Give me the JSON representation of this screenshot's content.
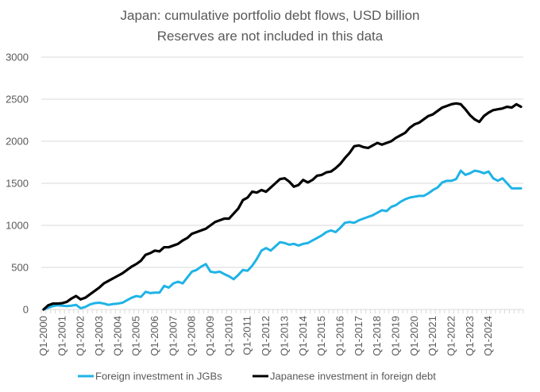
{
  "chart_data": {
    "type": "line",
    "title": "Japan: cumulative portfolio debt flows, USD billion",
    "subtitle": "Reserves are not included in this data",
    "xlabel": "",
    "ylabel": "",
    "ylim": [
      0,
      3000
    ],
    "yticks": [
      0,
      500,
      1000,
      1500,
      2000,
      2500,
      3000
    ],
    "grid": true,
    "legend_position": "bottom",
    "x_tick_labels": [
      "Q1-2000",
      "Q1-2001",
      "Q1-2002",
      "Q1-2003",
      "Q1-2004",
      "Q1-2005",
      "Q1-2006",
      "Q1-2007",
      "Q1-2008",
      "Q1-2009",
      "Q1-2010",
      "Q1-2011",
      "Q1-2012",
      "Q1-2013",
      "Q1-2014",
      "Q1-2015",
      "Q1-2016",
      "Q1-2017",
      "Q1-2018",
      "Q1-2019",
      "Q1-2020",
      "Q1-2021",
      "Q1-2022",
      "Q1-2023",
      "Q1-2024"
    ],
    "series": [
      {
        "name": "Foreign investment in JGBs",
        "color": "#1fb3e6",
        "values": [
          0,
          20,
          40,
          50,
          45,
          40,
          45,
          55,
          15,
          30,
          60,
          75,
          80,
          70,
          55,
          65,
          70,
          80,
          110,
          140,
          160,
          150,
          210,
          195,
          200,
          200,
          280,
          260,
          310,
          330,
          310,
          380,
          450,
          470,
          510,
          540,
          450,
          440,
          450,
          420,
          395,
          360,
          410,
          470,
          460,
          520,
          600,
          700,
          730,
          700,
          750,
          800,
          790,
          770,
          780,
          760,
          780,
          790,
          820,
          850,
          880,
          920,
          940,
          920,
          970,
          1030,
          1040,
          1030,
          1060,
          1080,
          1100,
          1120,
          1150,
          1180,
          1170,
          1220,
          1240,
          1280,
          1310,
          1330,
          1340,
          1350,
          1350,
          1380,
          1420,
          1450,
          1510,
          1530,
          1530,
          1550,
          1650,
          1600,
          1620,
          1650,
          1640,
          1620,
          1640,
          1560,
          1530,
          1560,
          1500,
          1440,
          1440,
          1440
        ]
      },
      {
        "name": "Japanese investment in foreign debt",
        "color": "#000000",
        "values": [
          0,
          50,
          70,
          70,
          75,
          90,
          130,
          160,
          120,
          140,
          180,
          220,
          260,
          310,
          340,
          370,
          400,
          430,
          470,
          510,
          540,
          580,
          650,
          670,
          700,
          690,
          740,
          740,
          760,
          780,
          820,
          850,
          900,
          920,
          940,
          960,
          1000,
          1040,
          1060,
          1080,
          1080,
          1140,
          1200,
          1300,
          1330,
          1400,
          1390,
          1420,
          1400,
          1450,
          1500,
          1550,
          1560,
          1520,
          1460,
          1480,
          1540,
          1510,
          1540,
          1590,
          1600,
          1630,
          1640,
          1680,
          1730,
          1800,
          1860,
          1940,
          1950,
          1930,
          1920,
          1950,
          1980,
          1960,
          1980,
          2000,
          2040,
          2070,
          2100,
          2160,
          2200,
          2220,
          2260,
          2300,
          2320,
          2360,
          2400,
          2420,
          2440,
          2450,
          2440,
          2380,
          2310,
          2260,
          2230,
          2300,
          2340,
          2370,
          2380,
          2390,
          2410,
          2400,
          2440,
          2410
        ]
      }
    ]
  }
}
